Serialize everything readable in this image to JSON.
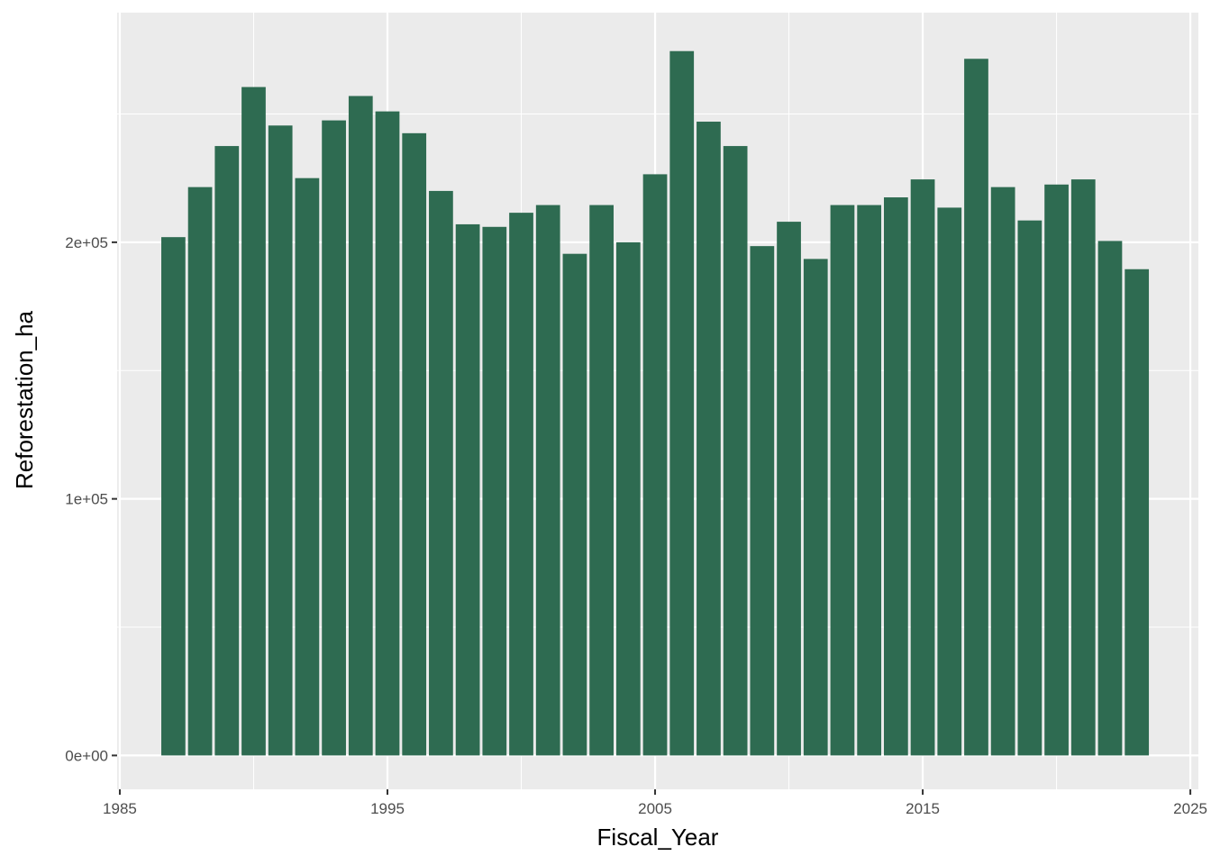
{
  "chart_data": {
    "type": "bar",
    "xlabel": "Fiscal_Year",
    "ylabel": "Reforestation_ha",
    "xlim": [
      1984.9,
      2025.3
    ],
    "ylim": [
      -13200,
      289500
    ],
    "x_ticks": [
      1985,
      1995,
      2005,
      2015,
      2025
    ],
    "x_tick_labels": [
      "1985",
      "1995",
      "2005",
      "2015",
      "2025"
    ],
    "y_ticks": [
      0,
      100000,
      200000
    ],
    "y_tick_labels": [
      "0e+00",
      "1e+05",
      "2e+05"
    ],
    "grid": true,
    "bar_color": "#2e6b51",
    "panel_background": "#ebebeb",
    "grid_color": "#ffffff",
    "x": [
      1987,
      1988,
      1989,
      1990,
      1991,
      1992,
      1993,
      1994,
      1995,
      1996,
      1997,
      1998,
      1999,
      2000,
      2001,
      2002,
      2003,
      2004,
      2005,
      2006,
      2007,
      2008,
      2009,
      2010,
      2011,
      2012,
      2013,
      2014,
      2015,
      2016,
      2017,
      2018,
      2019,
      2020,
      2021,
      2022,
      2023
    ],
    "values": [
      202000,
      221500,
      237500,
      260500,
      245500,
      225000,
      247500,
      257000,
      251000,
      242500,
      220000,
      207000,
      206000,
      211500,
      214500,
      195500,
      214500,
      200000,
      226500,
      274500,
      247000,
      237500,
      198500,
      208000,
      193500,
      214500,
      214500,
      217500,
      224500,
      213500,
      271500,
      221500,
      208500,
      222500,
      224500,
      200500,
      189500
    ]
  }
}
